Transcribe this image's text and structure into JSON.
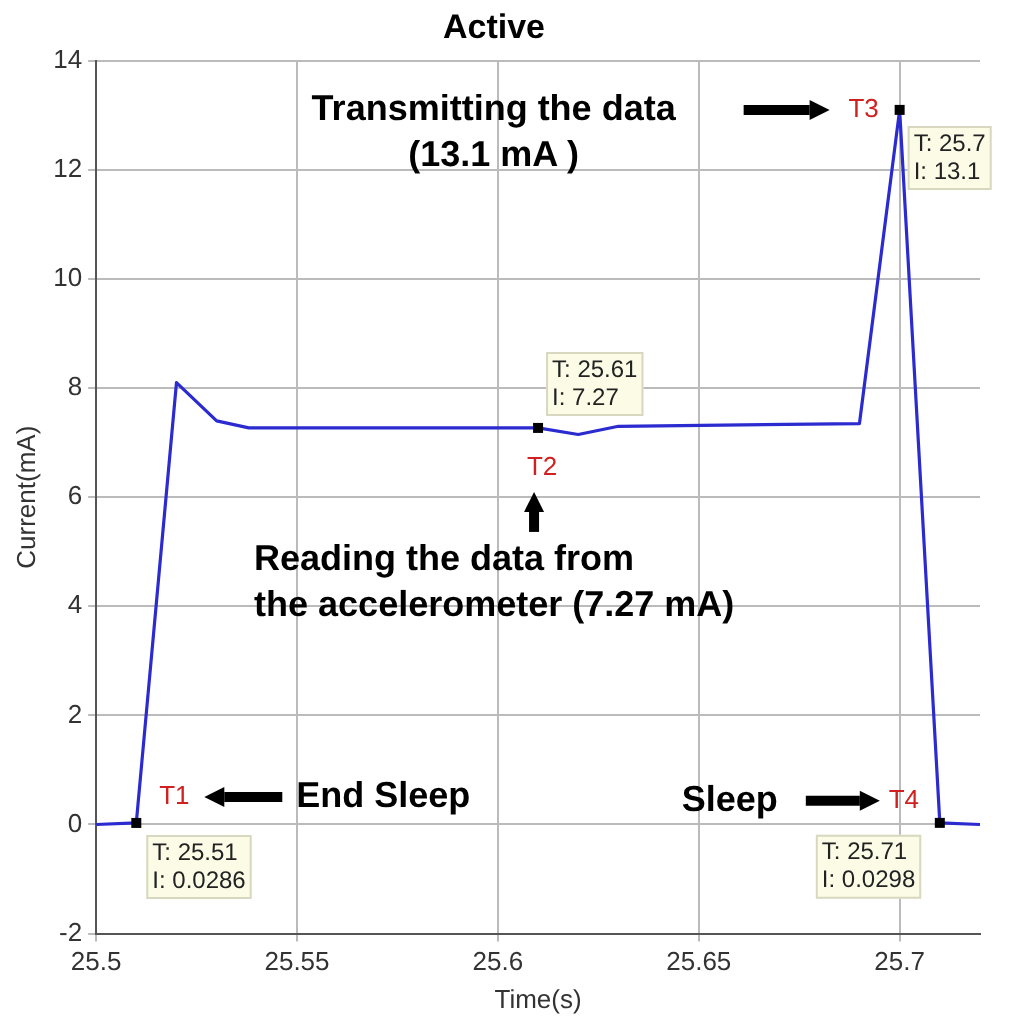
{
  "chart_data": {
    "type": "line",
    "title": "Active",
    "xlabel": "Time(s)",
    "ylabel": "Current(mA)",
    "x": [
      25.5,
      25.51,
      25.52,
      25.53,
      25.538,
      25.61,
      25.62,
      25.63,
      25.69,
      25.7,
      25.71,
      25.72
    ],
    "series": [
      {
        "color": "#2b2bd0",
        "values": [
          0,
          0.0286,
          8.1,
          7.4,
          7.27,
          7.27,
          7.15,
          7.3,
          7.35,
          13.1,
          0.0298,
          0
        ]
      }
    ],
    "xlim": [
      25.5,
      25.72
    ],
    "xticks": [
      25.5,
      25.55,
      25.6,
      25.65,
      25.7
    ],
    "ylim": [
      -2,
      14
    ],
    "yticks": [
      -2,
      0,
      2,
      4,
      6,
      8,
      10,
      12,
      14
    ],
    "grid": true,
    "legend": false,
    "marker": "none",
    "line_style": "solid",
    "annotations": [
      {
        "text": "T1",
        "x": 25.51,
        "y": 0.0286
      },
      {
        "text": "T: 25.51\nI: 0.0286",
        "x": 25.51,
        "y": 0.0286
      },
      "End Sleep",
      {
        "text": "T2",
        "x": 25.61,
        "y": 7.27
      },
      {
        "text": "T: 25.61\nI: 7.27",
        "x": 25.61,
        "y": 7.27
      },
      "Reading the data from\nthe accelerometer (7.27 mA)",
      {
        "text": "T3",
        "x": 25.7,
        "y": 13.1
      },
      {
        "text": "T: 25.7\nI: 13.1",
        "x": 25.7,
        "y": 13.1
      },
      "Transmitting the data\n(13.1 mA )",
      {
        "text": "T4",
        "x": 25.71,
        "y": 0.0298
      },
      {
        "text": "T: 25.71\nI: 0.0298",
        "x": 25.71,
        "y": 0.0298
      },
      "Sleep"
    ]
  }
}
